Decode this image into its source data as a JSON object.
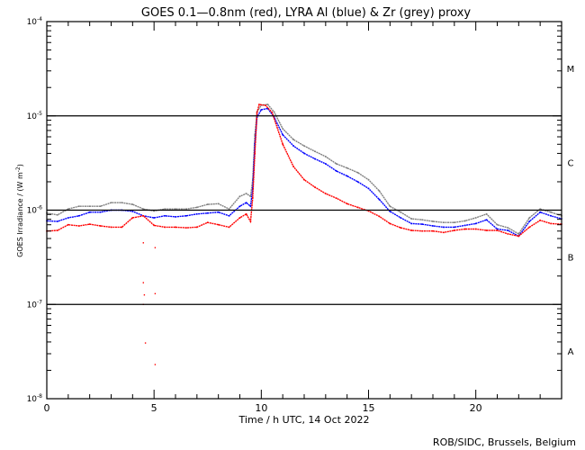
{
  "chart_data": {
    "type": "line",
    "title": "GOES 0.1—0.8nm (red), LYRA Al (blue) & Zr (grey) proxy",
    "xlabel": "Time / h UTC, 14 Oct 2022",
    "ylabel": "GOES Irradiance / (W m",
    "ylabel_sup": "-2",
    "ylabel_end": ")",
    "xlim": [
      0,
      24
    ],
    "ylim": [
      1e-08,
      0.0001
    ],
    "yscale": "log",
    "x_ticks": [
      {
        "value": 0,
        "label": "0"
      },
      {
        "value": 5,
        "label": "5"
      },
      {
        "value": 10,
        "label": "10"
      },
      {
        "value": 15,
        "label": "15"
      },
      {
        "value": 20,
        "label": "20"
      }
    ],
    "y_ticks": [
      {
        "value": 0.0001,
        "base": "10",
        "exp": "-4"
      },
      {
        "value": 1e-05,
        "base": "10",
        "exp": "-5"
      },
      {
        "value": 1e-06,
        "base": "10",
        "exp": "-6"
      },
      {
        "value": 1e-07,
        "base": "10",
        "exp": "-7"
      },
      {
        "value": 1e-08,
        "base": "10",
        "exp": "-8"
      }
    ],
    "reference_lines": [
      1e-05,
      1e-06,
      1e-07
    ],
    "flare_classes": [
      {
        "label": "M",
        "value": 3.2e-05
      },
      {
        "label": "C",
        "value": 3.2e-06
      },
      {
        "label": "B",
        "value": 3.2e-07
      },
      {
        "label": "A",
        "value": 3.2e-08
      }
    ],
    "series": [
      {
        "name": "GOES 0.1-0.8nm",
        "color": "#ff0000",
        "x": [
          0,
          0.5,
          1,
          1.5,
          2,
          2.5,
          3,
          3.5,
          4,
          4.5,
          5,
          5.5,
          6,
          6.5,
          7,
          7.5,
          8,
          8.5,
          9,
          9.3,
          9.5,
          9.6,
          9.7,
          9.8,
          9.9,
          10.2,
          10.5,
          11,
          11.5,
          12,
          12.5,
          13,
          13.5,
          14,
          14.5,
          15,
          15.5,
          16,
          16.5,
          17,
          17.5,
          18,
          18.5,
          19,
          19.5,
          20,
          20.5,
          21,
          21.5,
          22,
          22.5,
          23,
          23.5,
          24
        ],
        "values": [
          6e-07,
          6.1e-07,
          7e-07,
          6.8e-07,
          7.1e-07,
          6.8e-07,
          6.6e-07,
          6.6e-07,
          8.3e-07,
          8.7e-07,
          6.9e-07,
          6.6e-07,
          6.6e-07,
          6.5e-07,
          6.6e-07,
          7.4e-07,
          7e-07,
          6.6e-07,
          8.3e-07,
          9.1e-07,
          7.6e-07,
          1.35e-06,
          4e-06,
          1.09e-05,
          1.32e-05,
          1.29e-05,
          1.09e-05,
          5e-06,
          2.9e-06,
          2.1e-06,
          1.75e-06,
          1.5e-06,
          1.34e-06,
          1.17e-06,
          1.07e-06,
          9.8e-07,
          8.6e-07,
          7.2e-07,
          6.5e-07,
          6.1e-07,
          6e-07,
          6e-07,
          5.8e-07,
          6.1e-07,
          6.3e-07,
          6.3e-07,
          6.1e-07,
          6.1e-07,
          5.6e-07,
          5.3e-07,
          6.6e-07,
          7.8e-07,
          7.2e-07,
          7.1e-07
        ],
        "outliers": [
          {
            "x": 4.5,
            "y": 4.5e-07
          },
          {
            "x": 5.05,
            "y": 4e-07
          },
          {
            "x": 4.5,
            "y": 1.7e-07
          },
          {
            "x": 4.55,
            "y": 1.26e-07
          },
          {
            "x": 5.05,
            "y": 1.3e-07
          },
          {
            "x": 4.5,
            "y": 1e-07
          },
          {
            "x": 4.6,
            "y": 3.9e-08
          },
          {
            "x": 5.05,
            "y": 2.3e-08
          }
        ]
      },
      {
        "name": "LYRA Al proxy",
        "color": "#0000ff",
        "x": [
          0,
          0.5,
          1,
          1.5,
          2,
          2.5,
          3,
          3.5,
          4,
          4.5,
          5,
          5.5,
          6,
          6.5,
          7,
          7.5,
          8,
          8.5,
          9,
          9.3,
          9.5,
          9.6,
          9.7,
          9.8,
          10,
          10.3,
          10.6,
          11,
          11.5,
          12,
          12.5,
          13,
          13.5,
          14,
          14.5,
          15,
          15.5,
          16,
          16.5,
          17,
          17.5,
          18,
          18.5,
          19,
          19.5,
          20,
          20.5,
          21,
          21.5,
          22,
          22.5,
          23,
          23.5,
          24
        ],
        "values": [
          7.7e-07,
          7.6e-07,
          8.3e-07,
          8.7e-07,
          9.5e-07,
          9.5e-07,
          1e-06,
          1e-06,
          9.7e-07,
          8.7e-07,
          8.3e-07,
          8.7e-07,
          8.5e-07,
          8.7e-07,
          9.1e-07,
          9.3e-07,
          9.5e-07,
          8.7e-07,
          1.1e-06,
          1.2e-06,
          1.1e-06,
          1.7e-06,
          5e-06,
          9.7e-06,
          1.16e-05,
          1.2e-05,
          9.7e-06,
          6.3e-06,
          4.8e-06,
          4e-06,
          3.5e-06,
          3.1e-06,
          2.6e-06,
          2.3e-06,
          2e-06,
          1.7e-06,
          1.3e-06,
          9.7e-07,
          8.3e-07,
          7.2e-07,
          7.1e-07,
          6.8e-07,
          6.6e-07,
          6.6e-07,
          6.9e-07,
          7.2e-07,
          7.9e-07,
          6.3e-07,
          6.1e-07,
          5.3e-07,
          7.6e-07,
          9.5e-07,
          8.7e-07,
          8.1e-07
        ]
      },
      {
        "name": "LYRA Zr proxy",
        "color": "#808080",
        "x": [
          0,
          0.5,
          1,
          1.5,
          2,
          2.5,
          3,
          3.5,
          4,
          4.5,
          5,
          5.5,
          6,
          6.5,
          7,
          7.5,
          8,
          8.5,
          9,
          9.3,
          9.5,
          9.6,
          9.7,
          9.8,
          10,
          10.3,
          10.6,
          11,
          11.5,
          12,
          12.5,
          13,
          13.5,
          14,
          14.5,
          15,
          15.5,
          16,
          16.5,
          17,
          17.5,
          18,
          18.5,
          19,
          19.5,
          20,
          20.5,
          21,
          21.5,
          22,
          22.5,
          23,
          23.5,
          24
        ],
        "values": [
          9.3e-07,
          8.9e-07,
          1.03e-06,
          1.1e-06,
          1.1e-06,
          1.1e-06,
          1.2e-06,
          1.2e-06,
          1.15e-06,
          1.03e-06,
          9.8e-07,
          1.03e-06,
          1.03e-06,
          1.03e-06,
          1.07e-06,
          1.15e-06,
          1.17e-06,
          1.03e-06,
          1.4e-06,
          1.5e-06,
          1.4e-06,
          2.1e-06,
          6.3e-06,
          1.1e-05,
          1.3e-05,
          1.32e-05,
          1.1e-05,
          7.3e-06,
          5.6e-06,
          4.8e-06,
          4.2e-06,
          3.7e-06,
          3.1e-06,
          2.8e-06,
          2.5e-06,
          2.1e-06,
          1.6e-06,
          1.1e-06,
          9.5e-07,
          8.1e-07,
          7.9e-07,
          7.6e-07,
          7.4e-07,
          7.4e-07,
          7.7e-07,
          8.3e-07,
          9.1e-07,
          7e-07,
          6.5e-07,
          5.6e-07,
          8.3e-07,
          1.03e-06,
          9.5e-07,
          8.7e-07
        ]
      }
    ],
    "grid": false,
    "legend": "none",
    "credit": "ROB/SIDC, Brussels, Belgium"
  }
}
